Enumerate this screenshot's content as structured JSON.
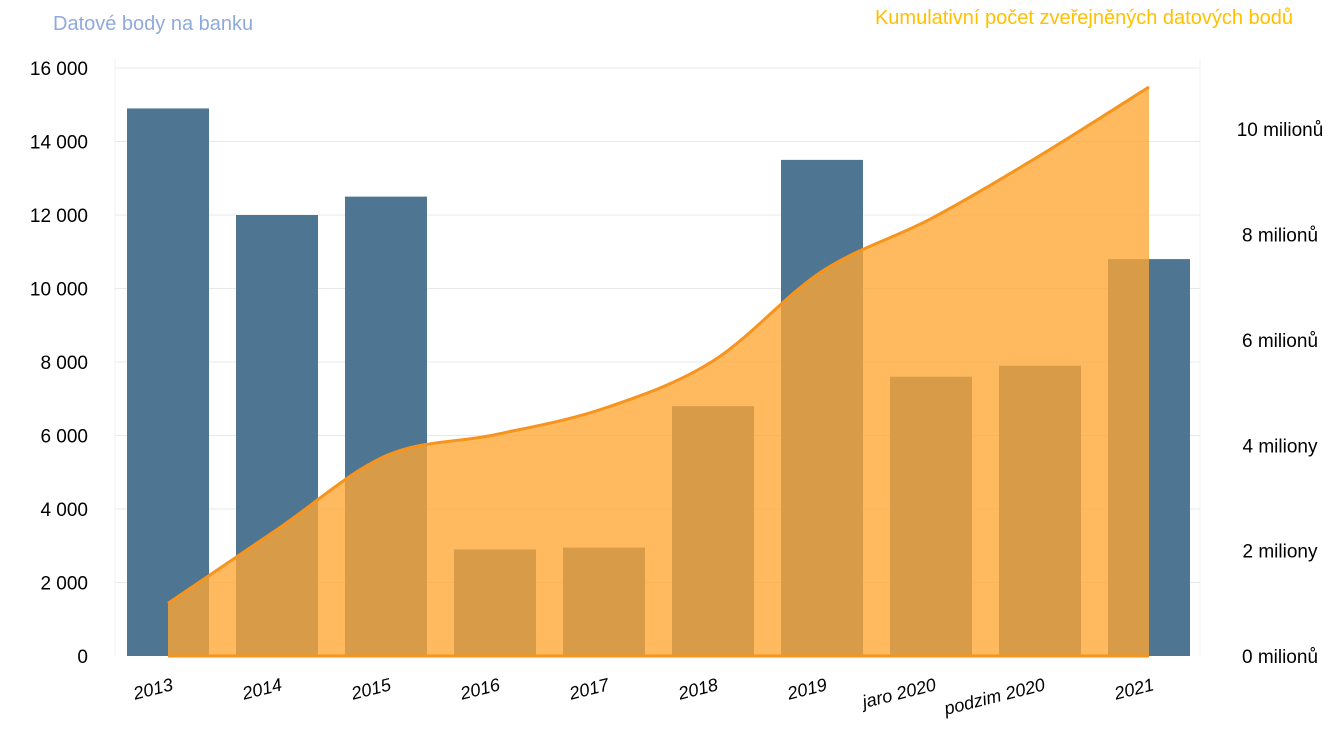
{
  "chart_data": {
    "type": "bar",
    "title_left": "Datové body na banku",
    "title_right": "Kumulativní počet zveřejněných datových bodů",
    "categories": [
      "2013",
      "2014",
      "2015",
      "2016",
      "2017",
      "2018",
      "2019",
      "jaro 2020",
      "podzim 2020",
      "2021"
    ],
    "series": [
      {
        "name": "Datové body na banku",
        "type": "bar",
        "axis": "left",
        "values": [
          14900,
          12000,
          12500,
          2900,
          2950,
          6800,
          13500,
          7600,
          7900,
          10800
        ]
      },
      {
        "name": "Kumulativní počet zveřejněných datových bodů",
        "type": "area",
        "axis": "right",
        "values": [
          1000000,
          2400000,
          3800000,
          4200000,
          4700000,
          5600000,
          7300000,
          8300000,
          9500000,
          10800000
        ]
      }
    ],
    "y_left": {
      "ylim": [
        0,
        16000
      ],
      "ticks": [
        0,
        2000,
        4000,
        6000,
        8000,
        10000,
        12000,
        14000,
        16000
      ],
      "tick_labels": [
        "0",
        "2 000",
        "4 000",
        "6 000",
        "8 000",
        "10 000",
        "12 000",
        "14 000",
        "16 000"
      ]
    },
    "y_right": {
      "ylim": [
        0,
        10800000
      ],
      "ticks": [
        0,
        2000000,
        4000000,
        6000000,
        8000000,
        10000000
      ],
      "tick_labels": [
        "0 milionů",
        "2 miliony",
        "4 miliony",
        "6 milionů",
        "8 milionů",
        "10 milionů"
      ]
    },
    "grid": true,
    "colors": {
      "bar": "#4e7591",
      "area_fill": "#ffa733",
      "area_line": "#f7941d",
      "left_title": "#8faadc",
      "right_title": "#ffc000",
      "grid": "#e8e8e8"
    }
  }
}
